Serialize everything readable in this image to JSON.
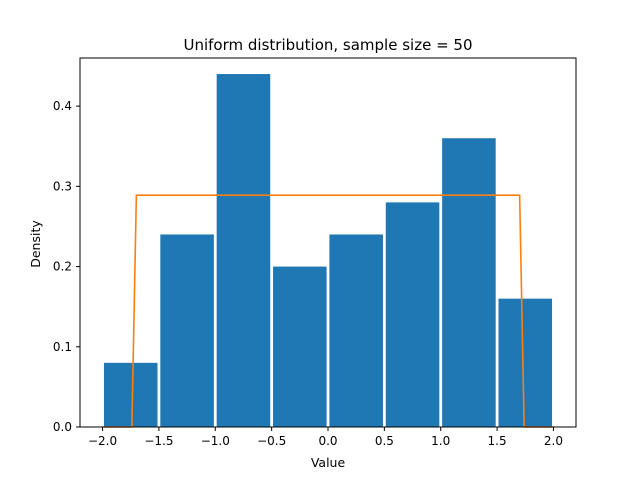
{
  "chart_data": {
    "type": "bar",
    "title": "Uniform distribution, sample size = 50",
    "xlabel": "Value",
    "ylabel": "Density",
    "xlim": [
      -2.2,
      2.2
    ],
    "ylim": [
      0,
      0.46
    ],
    "grid": false,
    "xticks": [
      -2.0,
      -1.5,
      -1.0,
      -0.5,
      0.0,
      0.5,
      1.0,
      1.5,
      2.0
    ],
    "xtick_labels": [
      "−2.0",
      "−1.5",
      "−1.0",
      "−0.5",
      "0.0",
      "0.5",
      "1.0",
      "1.5",
      "2.0"
    ],
    "yticks": [
      0.0,
      0.1,
      0.2,
      0.3,
      0.4
    ],
    "ytick_labels": [
      "0.0",
      "0.1",
      "0.2",
      "0.3",
      "0.4"
    ],
    "histogram": {
      "bin_edges": [
        -2.0,
        -1.5,
        -1.0,
        -0.5,
        0.0,
        0.5,
        1.0,
        1.5,
        2.0
      ],
      "densities": [
        0.08,
        0.24,
        0.44,
        0.2,
        0.24,
        0.28,
        0.36,
        0.16
      ],
      "color": "#1f77b4"
    },
    "density_curve": {
      "x": [
        -2.0,
        -1.74,
        -1.7,
        1.7,
        1.74,
        2.0
      ],
      "y": [
        0.0,
        0.0,
        0.289,
        0.289,
        0.0,
        0.0
      ],
      "color": "#ff7f0e"
    }
  }
}
